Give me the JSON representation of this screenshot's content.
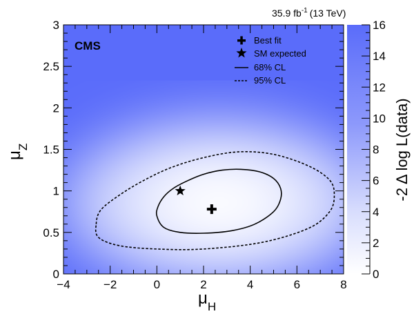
{
  "chart_data": {
    "type": "heatmap",
    "experiment": "CMS",
    "luminosity": {
      "value": "35.9 fb",
      "exponent": "-1",
      "energy": "(13 TeV)"
    },
    "x_axis": {
      "symbol": "μ",
      "subscript": "H",
      "range": [
        -4,
        8
      ],
      "ticks": [
        -4,
        -2,
        0,
        2,
        4,
        6,
        8
      ],
      "tick_labels": [
        "−4",
        "−2",
        "0",
        "2",
        "4",
        "6",
        "8"
      ]
    },
    "y_axis": {
      "symbol": "μ",
      "subscript": "Z",
      "range": [
        0,
        3
      ],
      "ticks": [
        0,
        0.5,
        1,
        1.5,
        2,
        2.5,
        3
      ],
      "tick_labels": [
        "0",
        "0.5",
        "1",
        "1.5",
        "2",
        "2.5",
        "3"
      ]
    },
    "z_axis": {
      "label": "-2 Δ log L(data)",
      "range": [
        0,
        16
      ],
      "ticks": [
        0,
        2,
        4,
        6,
        8,
        10,
        12,
        14,
        16
      ],
      "tick_labels": [
        "0",
        "2",
        "4",
        "6",
        "8",
        "10",
        "12",
        "14",
        "16"
      ],
      "color_low": "#ffffff",
      "color_high": "#5a6cfa"
    },
    "best_fit": {
      "mu_H": 2.35,
      "mu_Z": 0.78
    },
    "sm_expected": {
      "mu_H": 1.0,
      "mu_Z": 1.0
    },
    "contours": [
      {
        "name": "68% CL",
        "style": "solid",
        "points": [
          [
            0.0,
            0.7
          ],
          [
            0.05,
            0.81
          ],
          [
            0.3,
            0.93
          ],
          [
            0.7,
            1.03
          ],
          [
            1.3,
            1.12
          ],
          [
            2.0,
            1.2
          ],
          [
            2.8,
            1.25
          ],
          [
            3.6,
            1.26
          ],
          [
            4.4,
            1.23
          ],
          [
            5.0,
            1.15
          ],
          [
            5.3,
            1.03
          ],
          [
            5.3,
            0.9
          ],
          [
            5.0,
            0.75
          ],
          [
            4.2,
            0.6
          ],
          [
            3.2,
            0.52
          ],
          [
            2.0,
            0.49
          ],
          [
            1.0,
            0.5
          ],
          [
            0.3,
            0.56
          ]
        ]
      },
      {
        "name": "95% CL",
        "style": "dashed",
        "points": [
          [
            -2.6,
            0.6
          ],
          [
            -2.4,
            0.77
          ],
          [
            -1.6,
            0.95
          ],
          [
            -0.6,
            1.12
          ],
          [
            0.6,
            1.28
          ],
          [
            2.0,
            1.4
          ],
          [
            3.5,
            1.47
          ],
          [
            5.0,
            1.44
          ],
          [
            6.5,
            1.3
          ],
          [
            7.4,
            1.13
          ],
          [
            7.6,
            0.95
          ],
          [
            7.4,
            0.75
          ],
          [
            6.5,
            0.55
          ],
          [
            4.5,
            0.38
          ],
          [
            2.0,
            0.3
          ],
          [
            0.0,
            0.3
          ],
          [
            -1.6,
            0.34
          ],
          [
            -2.5,
            0.44
          ]
        ]
      }
    ],
    "legend": {
      "position": "top-right",
      "entries": [
        {
          "label": "Best fit",
          "marker": "cross"
        },
        {
          "label": "SM expected",
          "marker": "star"
        },
        {
          "label": "68% CL",
          "marker": "solid-line"
        },
        {
          "label": "95% CL",
          "marker": "dashed-line"
        }
      ]
    }
  }
}
